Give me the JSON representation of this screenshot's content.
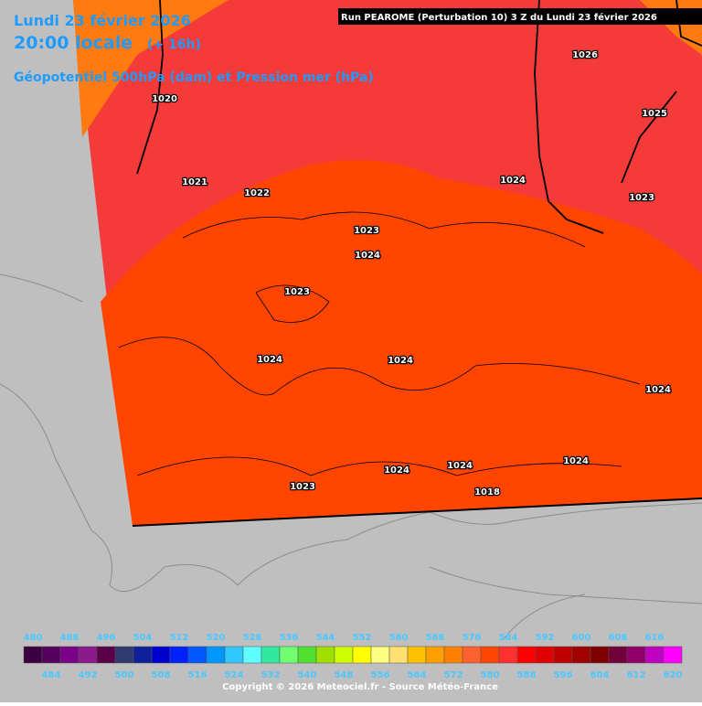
{
  "header": {
    "date": "Lundi 23 février 2026",
    "time": "20:00 locale",
    "lead": "(+ 16h)",
    "parameter": "Géopotentiel 500hPa (dam) et Pression mer (hPa)",
    "run": "Run PEAROME (Perturbation 10) 3 Z du Lundi 23 février 2026"
  },
  "isobar_labels": [
    "1020",
    "1021",
    "1022",
    "1023",
    "1024",
    "1023",
    "1024",
    "1024",
    "1024",
    "1026",
    "1025",
    "1023",
    "1024",
    "1024",
    "1024",
    "1024",
    "1023",
    "1018"
  ],
  "legend": {
    "top_labels": [
      "480",
      "488",
      "496",
      "504",
      "512",
      "520",
      "528",
      "536",
      "544",
      "552",
      "560",
      "568",
      "576",
      "584",
      "592",
      "600",
      "608",
      "616"
    ],
    "bottom_labels": [
      "484",
      "492",
      "500",
      "508",
      "516",
      "524",
      "532",
      "540",
      "548",
      "556",
      "564",
      "572",
      "580",
      "588",
      "596",
      "604",
      "612",
      "620"
    ],
    "colors": [
      "#3c0040",
      "#55005f",
      "#7a008a",
      "#8a1a8a",
      "#5a0048",
      "#303a70",
      "#10209a",
      "#0000d0",
      "#0020ff",
      "#0058ff",
      "#0096ff",
      "#30c8ff",
      "#60ffff",
      "#30e8a0",
      "#70ff70",
      "#50e030",
      "#a0e000",
      "#d0ff00",
      "#ffff00",
      "#ffff80",
      "#ffe070",
      "#ffc000",
      "#ffa000",
      "#ff8000",
      "#ff6030",
      "#ff4500",
      "#ff3030",
      "#ff0000",
      "#e00000",
      "#c00000",
      "#a00000",
      "#800000",
      "#700038",
      "#900068",
      "#c000c0",
      "#ff00ff"
    ]
  },
  "footer": {
    "copyright": "Copyright © 2026 Meteociel.fr - Source Météo-France"
  }
}
